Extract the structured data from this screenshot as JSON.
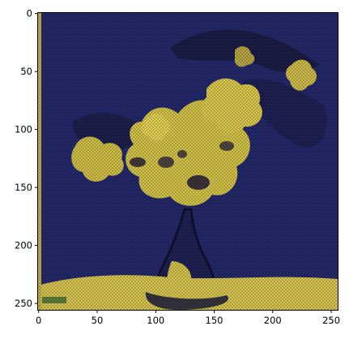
{
  "chart_data": {
    "type": "heatmap",
    "title": "",
    "xlabel": "",
    "ylabel": "",
    "image_size": [
      256,
      256
    ],
    "xlim": [
      0,
      255
    ],
    "ylim": [
      255,
      0
    ],
    "x_ticks": [
      0,
      50,
      100,
      150,
      200,
      250
    ],
    "y_ticks": [
      0,
      50,
      100,
      150,
      200,
      250
    ],
    "x_tick_labels": [
      "0",
      "50",
      "100",
      "150",
      "200",
      "250"
    ],
    "y_tick_labels": [
      "0",
      "50",
      "100",
      "150",
      "200",
      "250"
    ],
    "grid": false,
    "legend": "none",
    "content": "stylized painting of a vase with yellow flowers on a dark blue background, with a yellow table surface at the bottom and a checkered noise texture",
    "colors": {
      "background_dark": "#1a1f5c",
      "background_mid": "#232b78",
      "texture_green": "#3d6b3a",
      "flower_yellow": "#d9c94a",
      "flower_bright": "#f0dc55",
      "flower_shadow": "#2a2440",
      "vase_outline": "#0c0e2e",
      "table_yellow": "#dccb52",
      "left_strip": "#c8b84a"
    }
  }
}
